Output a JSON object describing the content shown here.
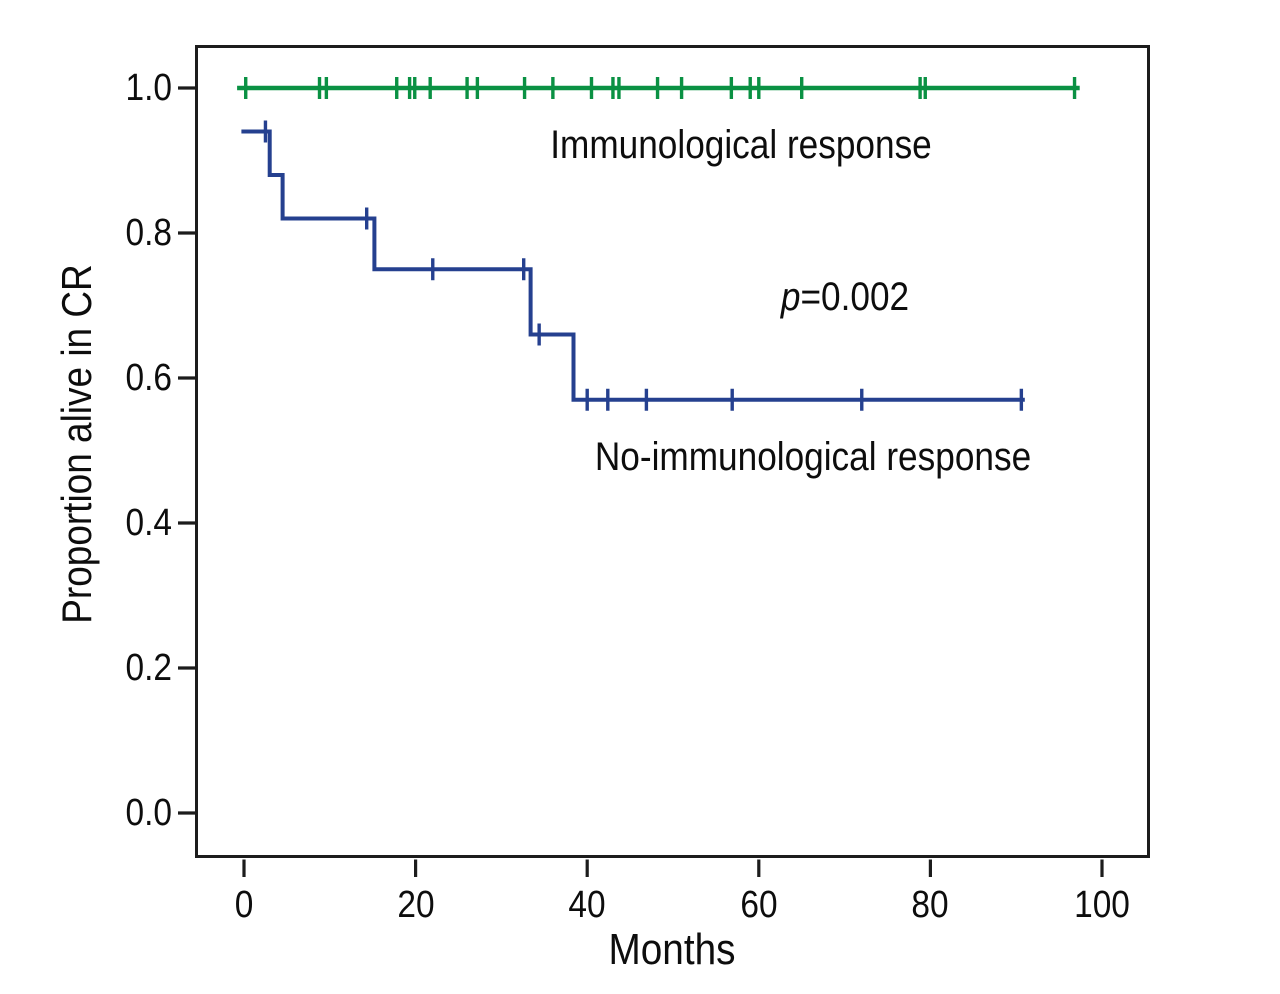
{
  "figure": {
    "background": "#ffffff",
    "frame_color": "#1c1c1c",
    "text_color": "#0d0d0d"
  },
  "chart_data": {
    "type": "line",
    "subtype": "kaplan_meier_step",
    "title": "",
    "xlabel": "Months",
    "ylabel": "Proportion alive in CR",
    "xlim": [
      0,
      100
    ],
    "ylim": [
      0.0,
      1.0
    ],
    "grid": false,
    "legend_position": "inline-annotations",
    "p_label": "p",
    "p_value": "=0.002",
    "x_ticks": [
      {
        "label": "0",
        "value": 0
      },
      {
        "label": "20",
        "value": 20
      },
      {
        "label": "40",
        "value": 40
      },
      {
        "label": "60",
        "value": 60
      },
      {
        "label": "80",
        "value": 80
      },
      {
        "label": "100",
        "value": 100
      }
    ],
    "y_ticks": [
      {
        "label": "1.0",
        "value": 1.0
      },
      {
        "label": "0.8",
        "value": 0.8
      },
      {
        "label": "0.6",
        "value": 0.6
      },
      {
        "label": "0.4",
        "value": 0.4
      },
      {
        "label": "0.2",
        "value": 0.2
      },
      {
        "label": "0.0",
        "value": 0.0
      }
    ],
    "series": [
      {
        "name": "Immunological response",
        "color": "#0a9143",
        "step_points": [
          [
            -0.8,
            1.0
          ],
          [
            97.4,
            1.0
          ]
        ],
        "censor_marks": [
          [
            0.2,
            1.0
          ],
          [
            8.8,
            1.0
          ],
          [
            9.6,
            1.0
          ],
          [
            17.8,
            1.0
          ],
          [
            19.3,
            1.0
          ],
          [
            19.9,
            1.0
          ],
          [
            21.7,
            1.0
          ],
          [
            26.0,
            1.0
          ],
          [
            27.2,
            1.0
          ],
          [
            32.7,
            1.0
          ],
          [
            36.0,
            1.0
          ],
          [
            40.5,
            1.0
          ],
          [
            43.0,
            1.0
          ],
          [
            43.7,
            1.0
          ],
          [
            48.2,
            1.0
          ],
          [
            51.0,
            1.0
          ],
          [
            56.8,
            1.0
          ],
          [
            59.0,
            1.0
          ],
          [
            60.0,
            1.0
          ],
          [
            65.0,
            1.0
          ],
          [
            78.8,
            1.0
          ],
          [
            79.4,
            1.0
          ],
          [
            96.8,
            1.0
          ]
        ]
      },
      {
        "name": "No-immunological response",
        "color": "#25408f",
        "step_points": [
          [
            -0.3,
            0.94
          ],
          [
            3.0,
            0.94
          ],
          [
            3.0,
            0.88
          ],
          [
            4.5,
            0.88
          ],
          [
            4.5,
            0.82
          ],
          [
            15.2,
            0.82
          ],
          [
            15.2,
            0.75
          ],
          [
            33.4,
            0.75
          ],
          [
            33.4,
            0.66
          ],
          [
            38.4,
            0.66
          ],
          [
            38.4,
            0.57
          ],
          [
            91.0,
            0.57
          ]
        ],
        "censor_marks": [
          [
            2.5,
            0.94
          ],
          [
            14.3,
            0.82
          ],
          [
            22.0,
            0.75
          ],
          [
            32.6,
            0.75
          ],
          [
            34.4,
            0.66
          ],
          [
            40.0,
            0.57
          ],
          [
            42.4,
            0.57
          ],
          [
            46.9,
            0.57
          ],
          [
            56.9,
            0.57
          ],
          [
            72.0,
            0.57
          ],
          [
            90.6,
            0.57
          ]
        ]
      }
    ]
  }
}
